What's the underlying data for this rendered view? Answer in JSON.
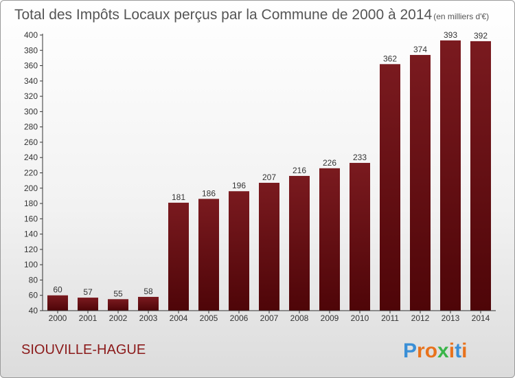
{
  "chart_data": {
    "type": "bar",
    "title": "Total des Impôts Locaux perçus par la Commune de 2000 à 2014",
    "unit_note": "(en milliers d'€)",
    "categories": [
      "2000",
      "2001",
      "2002",
      "2003",
      "2004",
      "2005",
      "2006",
      "2007",
      "2008",
      "2009",
      "2010",
      "2011",
      "2012",
      "2013",
      "2014"
    ],
    "values": [
      60,
      57,
      55,
      58,
      181,
      186,
      196,
      207,
      216,
      226,
      233,
      362,
      374,
      393,
      392
    ],
    "ylim": [
      40,
      400
    ],
    "ytick_step": 20,
    "grid": false,
    "bar_color": "#7a1a1f",
    "bar_color_dark": "#4e0508"
  },
  "commune": "SIOUVILLE-HAGUE",
  "logo": {
    "text": "Proxiti",
    "letter_colors": [
      "#3a8fd6",
      "#e8721c",
      "#e8721c",
      "#3ab54a",
      "#e8721c",
      "#3a8fd6",
      "#e8721c"
    ]
  }
}
